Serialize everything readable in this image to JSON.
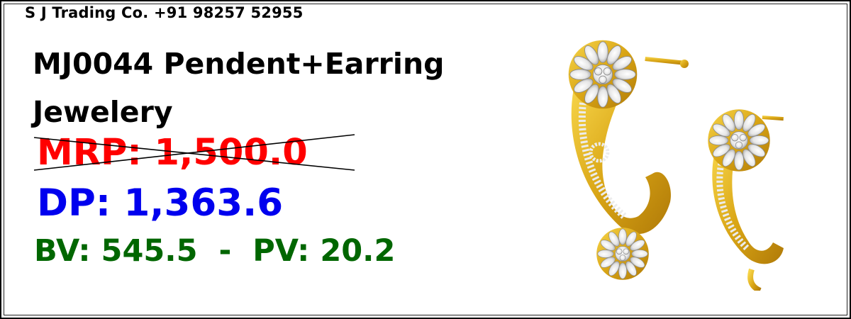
{
  "header": {
    "company": "S J Trading Co. +91 98257 52955"
  },
  "product": {
    "title": "MJ0044 Pendent+Earring Jewelery",
    "mrp": "MRP: 1,500.0",
    "dp": "DP: 1,363.6",
    "bv_pv": "BV: 545.5  -  PV: 20.2"
  },
  "colors": {
    "mrp": "#ff0000",
    "dp": "#0000ee",
    "bv_pv": "#006600",
    "gold": "#e0b21e",
    "stone": "#f4f4f4"
  },
  "image": {
    "subject": "gold-cz-earrings-image"
  }
}
